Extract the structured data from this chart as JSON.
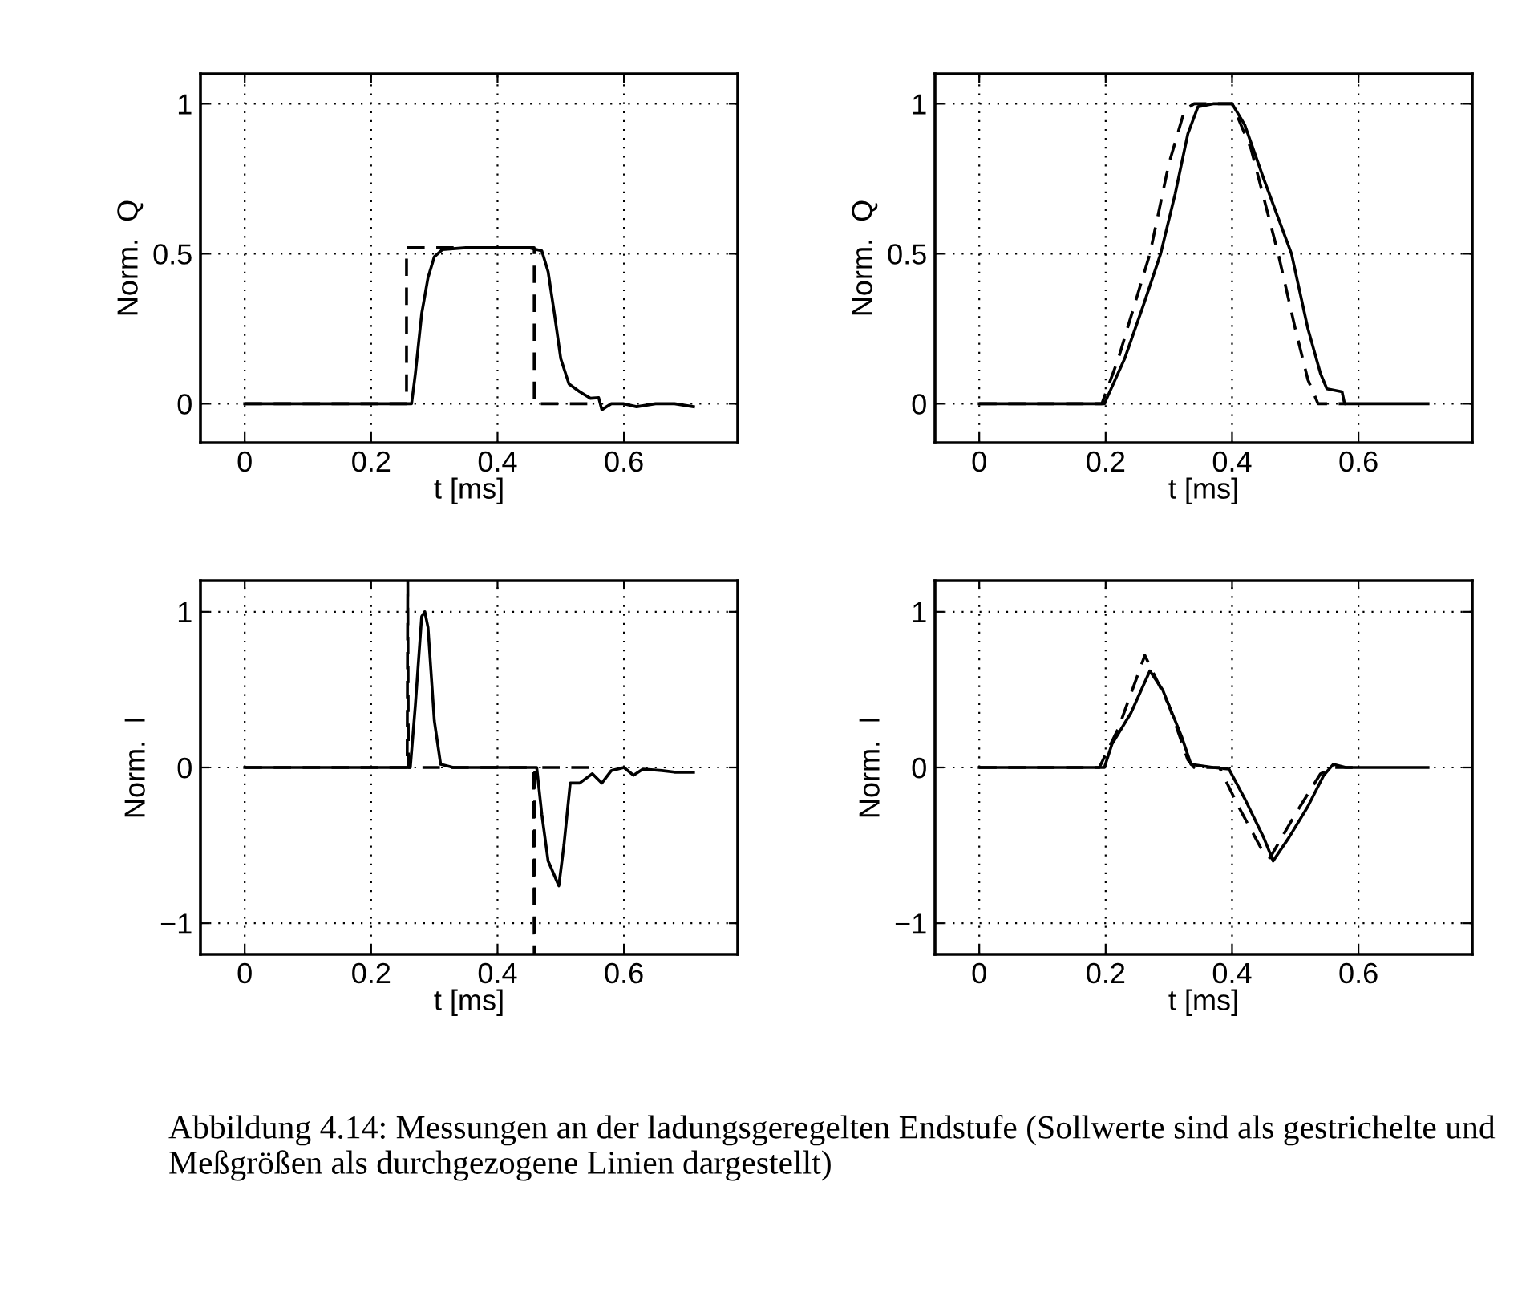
{
  "chart_data": [
    {
      "type": "line",
      "xlabel": "t [ms]",
      "ylabel": "Norm.  Q",
      "xlim": [
        -0.07,
        0.78
      ],
      "ylim": [
        -0.13,
        1.1
      ],
      "xticks": [
        0,
        0.2,
        0.4,
        0.6
      ],
      "yticks": [
        0,
        0.5,
        1
      ],
      "grid": true,
      "series": [
        {
          "color": "#000000",
          "line_style": "solid",
          "x": [
            0,
            0.1,
            0.2,
            0.264,
            0.27,
            0.28,
            0.29,
            0.3,
            0.313,
            0.35,
            0.4,
            0.45,
            0.47,
            0.48,
            0.49,
            0.5,
            0.513,
            0.53,
            0.547,
            0.56,
            0.565,
            0.58,
            0.6,
            0.62,
            0.65,
            0.68,
            0.71
          ],
          "values": [
            0,
            0,
            0,
            0,
            0.1,
            0.3,
            0.42,
            0.49,
            0.514,
            0.52,
            0.52,
            0.52,
            0.51,
            0.44,
            0.3,
            0.15,
            0.066,
            0.04,
            0.018,
            0.02,
            -0.02,
            0.0,
            0.0,
            -0.01,
            0.0,
            0.0,
            -0.01
          ]
        },
        {
          "color": "#000000",
          "line_style": "dashed",
          "x": [
            0,
            0.256,
            0.256,
            0.458,
            0.458,
            0.55
          ],
          "values": [
            0,
            0,
            0.52,
            0.52,
            0,
            0
          ]
        }
      ]
    },
    {
      "type": "line",
      "xlabel": "t [ms]",
      "ylabel": "Norm.  Q",
      "xlim": [
        -0.07,
        0.78
      ],
      "ylim": [
        -0.13,
        1.1
      ],
      "xticks": [
        0,
        0.2,
        0.4,
        0.6
      ],
      "yticks": [
        0,
        0.5,
        1
      ],
      "grid": true,
      "series": [
        {
          "color": "#000000",
          "line_style": "solid",
          "x": [
            0,
            0.198,
            0.23,
            0.26,
            0.287,
            0.31,
            0.33,
            0.346,
            0.37,
            0.4,
            0.42,
            0.45,
            0.494,
            0.52,
            0.54,
            0.55,
            0.574,
            0.578,
            0.71
          ],
          "values": [
            0,
            0,
            0.15,
            0.33,
            0.5,
            0.7,
            0.9,
            0.99,
            1.0,
            1.0,
            0.93,
            0.75,
            0.5,
            0.25,
            0.1,
            0.05,
            0.04,
            0,
            0
          ]
        },
        {
          "color": "#000000",
          "line_style": "dashed",
          "x": [
            0,
            0.194,
            0.22,
            0.25,
            0.27,
            0.3,
            0.325,
            0.34,
            0.4,
            0.43,
            0.473,
            0.5,
            0.52,
            0.536,
            0.58
          ],
          "values": [
            0,
            0,
            0.15,
            0.36,
            0.5,
            0.8,
            0.98,
            1.0,
            1.0,
            0.85,
            0.5,
            0.25,
            0.08,
            0,
            0
          ]
        }
      ]
    },
    {
      "type": "line",
      "xlabel": "t [ms]",
      "ylabel": "Norm.  I",
      "xlim": [
        -0.07,
        0.78
      ],
      "ylim": [
        -1.2,
        1.2
      ],
      "xticks": [
        0,
        0.2,
        0.4,
        0.6
      ],
      "yticks": [
        {
          "value": -1,
          "label": "−1"
        },
        0,
        1
      ],
      "grid": true,
      "series": [
        {
          "color": "#000000",
          "line_style": "solid",
          "x": [
            0,
            0.262,
            0.27,
            0.28,
            0.285,
            0.29,
            0.3,
            0.31,
            0.33,
            0.462,
            0.47,
            0.48,
            0.497,
            0.505,
            0.515,
            0.53,
            0.55,
            0.565,
            0.58,
            0.6,
            0.615,
            0.63,
            0.66,
            0.68,
            0.71
          ],
          "values": [
            0,
            0,
            0.4,
            0.97,
            1.0,
            0.9,
            0.3,
            0.02,
            0,
            0,
            -0.3,
            -0.6,
            -0.76,
            -0.5,
            -0.1,
            -0.1,
            -0.04,
            -0.1,
            -0.02,
            0.0,
            -0.05,
            -0.01,
            -0.02,
            -0.03,
            -0.03
          ]
        },
        {
          "color": "#000000",
          "line_style": "dashed",
          "x": [
            0,
            0.257,
            0.258,
            0.259,
            0.457,
            0.458,
            0.459,
            0.55
          ],
          "values": [
            0,
            0,
            1.2,
            0,
            0,
            -1.2,
            0,
            0
          ]
        }
      ]
    },
    {
      "type": "line",
      "xlabel": "t [ms]",
      "ylabel": "Norm.  I",
      "xlim": [
        -0.07,
        0.78
      ],
      "ylim": [
        -1.2,
        1.2
      ],
      "xticks": [
        0,
        0.2,
        0.4,
        0.6
      ],
      "yticks": [
        {
          "value": -1,
          "label": "−1"
        },
        0,
        1
      ],
      "grid": true,
      "series": [
        {
          "color": "#000000",
          "line_style": "solid",
          "x": [
            0,
            0.198,
            0.21,
            0.24,
            0.27,
            0.29,
            0.32,
            0.335,
            0.37,
            0.395,
            0.42,
            0.45,
            0.465,
            0.49,
            0.52,
            0.545,
            0.56,
            0.58,
            0.71
          ],
          "values": [
            0,
            0,
            0.15,
            0.35,
            0.62,
            0.5,
            0.2,
            0.02,
            0.0,
            -0.01,
            -0.2,
            -0.45,
            -0.6,
            -0.45,
            -0.25,
            -0.05,
            0.02,
            0,
            0
          ]
        },
        {
          "color": "#000000",
          "line_style": "dashed",
          "x": [
            0,
            0.19,
            0.22,
            0.262,
            0.3,
            0.33,
            0.34,
            0.38,
            0.41,
            0.45,
            0.46,
            0.5,
            0.54,
            0.56,
            0.6
          ],
          "values": [
            0,
            0,
            0.25,
            0.72,
            0.4,
            0.05,
            0,
            0,
            -0.25,
            -0.55,
            -0.58,
            -0.3,
            -0.04,
            0,
            0
          ]
        }
      ],
      "annotations": [
        "Abbildung 4.14: Messungen an der ladungsgeregelten Endstufe (Sollwerte sind als gestrichelte und Meßgrößen als durchgezogene Linien dargestellt)"
      ]
    }
  ]
}
